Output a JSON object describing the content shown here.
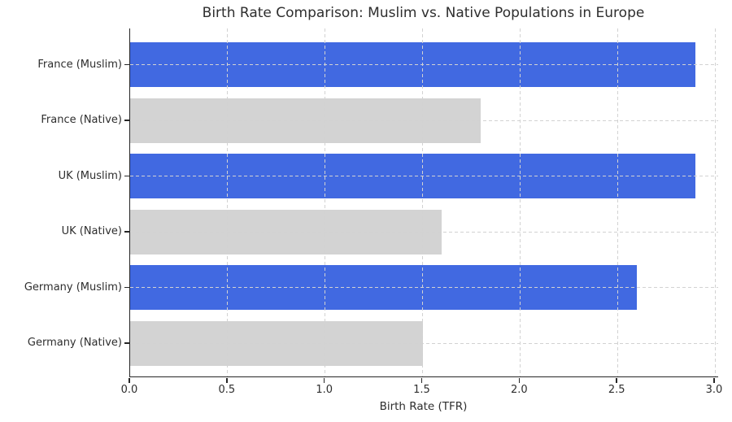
{
  "chart_data": {
    "type": "bar",
    "orientation": "horizontal",
    "title": "Birth Rate Comparison: Muslim vs. Native Populations in Europe",
    "xlabel": "Birth Rate (TFR)",
    "ylabel": "",
    "categories": [
      "France (Muslim)",
      "France (Native)",
      "UK (Muslim)",
      "UK (Native)",
      "Germany (Muslim)",
      "Germany (Native)"
    ],
    "values": [
      2.9,
      1.8,
      2.9,
      1.6,
      2.6,
      1.5
    ],
    "bar_colors": [
      "#4169E1",
      "#D3D3D3",
      "#4169E1",
      "#D3D3D3",
      "#4169E1",
      "#D3D3D3"
    ],
    "xticks": [
      0.0,
      0.5,
      1.0,
      1.5,
      2.0,
      2.5,
      3.0
    ],
    "xtick_labels": [
      "0.0",
      "0.5",
      "1.0",
      "1.5",
      "2.0",
      "2.5",
      "3.0"
    ],
    "xlim": [
      0.0,
      3.02
    ],
    "grid": true,
    "grid_style": "dashed",
    "legend_position": "none",
    "colors": {
      "muslim_bar": "#4169E1",
      "native_bar": "#D3D3D3",
      "grid": "#d2d2d2",
      "spine": "#262626",
      "text": "#2e2e2e",
      "background": "#ffffff"
    }
  }
}
